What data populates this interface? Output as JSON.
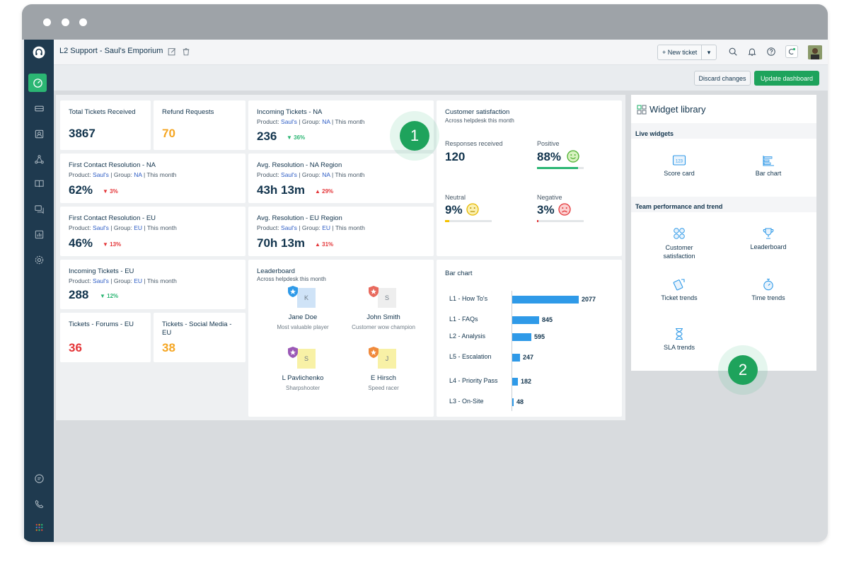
{
  "app": {
    "title": "L2 Support - Saul's Emporium",
    "new_ticket": "+ New ticket",
    "discard": "Discard changes",
    "update": "Update dashboard"
  },
  "sidebar": {
    "icons": [
      "headset-logo-icon",
      "dashboard-icon",
      "tickets-icon",
      "contacts-icon",
      "groups-icon",
      "knowledge-base-icon",
      "forums-icon",
      "reports-icon",
      "settings-icon",
      "chat-icon",
      "phone-icon",
      "apps-grid-icon"
    ]
  },
  "cards": {
    "total": {
      "title": "Total Tickets Received",
      "value": "3867"
    },
    "refund": {
      "title": "Refund Requests",
      "value": "70",
      "color": "#f5a623"
    },
    "incoming_na": {
      "title": "Incoming Tickets - NA",
      "product_lbl": "Product:",
      "product": "Saul's",
      "group_lbl": "Group:",
      "group": "NA",
      "period": "This month",
      "value": "236",
      "delta": "36%"
    },
    "fcr_na": {
      "title": "First Contact Resolution - NA",
      "product_lbl": "Product:",
      "product": "Saul's",
      "group_lbl": "Group:",
      "group": "NA",
      "period": "This month",
      "value": "62%",
      "delta": "3%"
    },
    "avg_na": {
      "title": "Avg. Resolution - NA Region",
      "product_lbl": "Product:",
      "product": "Saul's",
      "group_lbl": "Group:",
      "group": "NA",
      "period": "This month",
      "value": "43h 13m",
      "delta": "29%"
    },
    "fcr_eu": {
      "title": "First Contact Resolution - EU",
      "product_lbl": "Product:",
      "product": "Saul's",
      "group_lbl": "Group:",
      "group": "EU",
      "period": "This month",
      "value": "46%",
      "delta": "13%"
    },
    "avg_eu": {
      "title": "Avg. Resolution - EU Region",
      "product_lbl": "Product:",
      "product": "Saul's",
      "group_lbl": "Group:",
      "group": "EU",
      "period": "This month",
      "value": "70h 13m",
      "delta": "31%"
    },
    "incoming_eu": {
      "title": "Incoming Tickets - EU",
      "product_lbl": "Product:",
      "product": "Saul's",
      "group_lbl": "Group:",
      "group": "EU",
      "period": "This month",
      "value": "288",
      "delta": "12%"
    },
    "forums": {
      "title": "Tickets - Forums - EU",
      "value": "36",
      "color": "#e43538"
    },
    "social": {
      "title": "Tickets - Social Media - EU",
      "value": "38",
      "color": "#f5a623"
    }
  },
  "satisfaction": {
    "title": "Customer satisfaction",
    "subtitle": "Across helpdesk this month",
    "responses_lbl": "Responses received",
    "responses": "120",
    "positive_lbl": "Positive",
    "positive": "88%",
    "positive_level": 0.88,
    "neutral_lbl": "Neutral",
    "neutral": "9%",
    "neutral_level": 0.09,
    "negative_lbl": "Negative",
    "negative": "3%",
    "negative_level": 0.03
  },
  "leaderboard": {
    "title": "Leaderboard",
    "subtitle": "Across helpdesk this month",
    "people": [
      {
        "initial": "K",
        "name": "Jane Doe",
        "role": "Most valuable player",
        "shield": "#2f9ae8",
        "bg": "#cfe3f7"
      },
      {
        "initial": "S",
        "name": "John Smith",
        "role": "Customer wow champion",
        "shield": "#e86a5e",
        "bg": "#eeeeee"
      },
      {
        "initial": "S",
        "name": "L Pavlichenko",
        "role": "Sharpshooter",
        "shield": "#9b59b6",
        "bg": "#f8f1a6"
      },
      {
        "initial": "J",
        "name": "E Hirsch",
        "role": "Speed racer",
        "shield": "#f08a3c",
        "bg": "#f8f1a6"
      }
    ]
  },
  "chart_data": {
    "type": "bar",
    "title": "Bar chart",
    "categories": [
      "L1 - How To's",
      "L1 - FAQs",
      "L2 - Analysis",
      "L5 - Escalation",
      "L4 - Priority Pass",
      "L3 - On-Site"
    ],
    "values": [
      2077,
      845,
      595,
      247,
      182,
      48
    ],
    "orientation": "horizontal",
    "color": "#2f9ae8"
  },
  "library": {
    "title": "Widget library",
    "live_section": "Live widgets",
    "team_section": "Team performance and trend",
    "live_items": [
      {
        "label": "Score card",
        "icon": "score-card-icon"
      },
      {
        "label": "Bar chart",
        "icon": "bar-chart-icon"
      }
    ],
    "team_items": [
      {
        "label": "Customer satisfaction",
        "icon": "customer-satisfaction-icon"
      },
      {
        "label": "Leaderboard",
        "icon": "trophy-icon"
      },
      {
        "label": "Ticket trends",
        "icon": "ticket-trends-icon"
      },
      {
        "label": "Time trends",
        "icon": "stopwatch-icon"
      },
      {
        "label": "SLA trends",
        "icon": "hourglass-icon"
      }
    ]
  },
  "badges": {
    "one": "1",
    "two": "2"
  }
}
